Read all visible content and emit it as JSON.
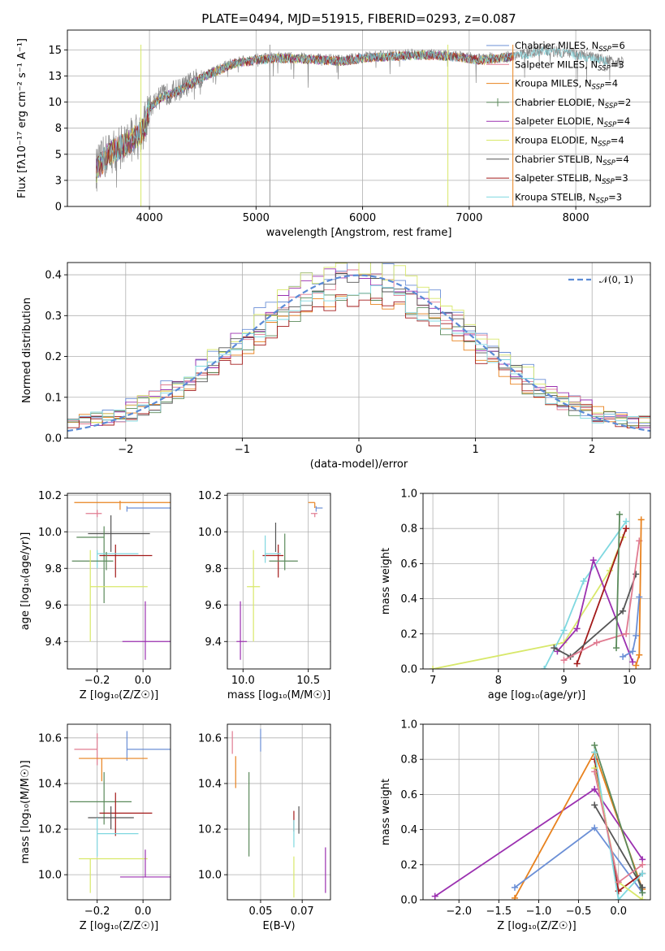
{
  "colors": {
    "Chabrier MILES": "#6b8fd6",
    "Salpeter MILES": "#e07b91",
    "Kroupa MILES": "#e8821e",
    "Chabrier ELODIE": "#5b8a5b",
    "Salpeter ELODIE": "#9b30b0",
    "Kroupa ELODIE": "#d8e86a",
    "Chabrier STELIB": "#555555",
    "Salpeter STELIB": "#a31a1a",
    "Kroupa STELIB": "#7fd8e0",
    "normal": "#5b8bd6",
    "grey_spectrum": "#8a8a8a"
  },
  "chart_data": [
    {
      "id": "spectrum",
      "type": "line",
      "title": "PLATE=0494, MJD=51915, FIBERID=0293, z=0.087",
      "xlabel": "wavelength [Angstrom, rest frame]",
      "ylabel": "Flux [fλ10⁻¹⁷ erg cm⁻² s⁻¹ A⁻¹]",
      "xlim": [
        3230,
        8700
      ],
      "ylim": [
        0,
        16.9
      ],
      "xticks": [
        4000,
        5000,
        6000,
        7000,
        8000
      ],
      "yticks": [
        0.0,
        2.5,
        5.0,
        7.5,
        10.0,
        12.5,
        15.0
      ],
      "continuum": {
        "x": [
          3500,
          3600,
          3800,
          3950,
          4000,
          4100,
          4300,
          4500,
          4800,
          5000,
          5200,
          5500,
          5800,
          6000,
          6300,
          6600,
          6900,
          7100,
          7400,
          7700,
          8000,
          8200,
          8400
        ],
        "y": [
          3.5,
          5.0,
          6.2,
          7.5,
          9.5,
          10.5,
          11.3,
          12.5,
          13.8,
          14.1,
          14.3,
          14.2,
          14.0,
          14.3,
          14.5,
          14.6,
          14.4,
          14.1,
          14.4,
          15.0,
          14.6,
          14.2,
          13.8
        ]
      },
      "legend_placement": "top-right",
      "series": [
        {
          "name": "Chabrier MILES, N_SSP=6",
          "label_main": "Chabrier MILES, N",
          "label_sub": "SSP",
          "label_tail": "=6"
        },
        {
          "name": "Salpeter MILES, N_SSP=3",
          "label_main": "Salpeter MILES, N",
          "label_sub": "SSP",
          "label_tail": "=3"
        },
        {
          "name": "Kroupa MILES, N_SSP=4",
          "label_main": "Kroupa MILES, N",
          "label_sub": "SSP",
          "label_tail": "=4"
        },
        {
          "name": "Chabrier ELODIE, N_SSP=2",
          "label_main": "Chabrier ELODIE, N",
          "label_sub": "SSP",
          "label_tail": "=2"
        },
        {
          "name": "Salpeter ELODIE, N_SSP=4",
          "label_main": "Salpeter ELODIE, N",
          "label_sub": "SSP",
          "label_tail": "=4"
        },
        {
          "name": "Kroupa ELODIE, N_SSP=4",
          "label_main": "Kroupa ELODIE, N",
          "label_sub": "SSP",
          "label_tail": "=4"
        },
        {
          "name": "Chabrier STELIB, N_SSP=4",
          "label_main": "Chabrier STELIB, N",
          "label_sub": "SSP",
          "label_tail": "=4"
        },
        {
          "name": "Salpeter STELIB, N_SSP=3",
          "label_main": "Salpeter STELIB, N",
          "label_sub": "SSP",
          "label_tail": "=3"
        },
        {
          "name": "Kroupa STELIB, N_SSP=3",
          "label_main": "Kroupa STELIB, N",
          "label_sub": "SSP",
          "label_tail": "=3"
        }
      ]
    },
    {
      "id": "residuals",
      "type": "histogram",
      "xlabel": "(data-model)/error",
      "ylabel": "Normed distribution",
      "xlim": [
        -2.5,
        2.5
      ],
      "ylim": [
        0,
        0.43
      ],
      "xticks": [
        -2,
        -1,
        0,
        1,
        2
      ],
      "yticks": [
        0.0,
        0.1,
        0.2,
        0.3,
        0.4
      ],
      "bin_width": 0.1,
      "normal_label": "𝒩(0, 1)",
      "legend_placement": "top-right"
    },
    {
      "id": "age_vs_Z",
      "type": "errorbar",
      "xlabel": "Z [log₁₀(Z/Z☉)]",
      "ylabel": "age  [log₁₀(age/yr)]",
      "xlim": [
        -0.33,
        0.12
      ],
      "ylim": [
        9.25,
        10.21
      ],
      "xticks": [
        -0.2,
        0.0
      ],
      "yticks": [
        9.4,
        9.6,
        9.8,
        10.0,
        10.2
      ],
      "points": [
        {
          "model": "Kroupa MILES",
          "x": -0.1,
          "xerr": [
            0.2,
            0.26
          ],
          "y": 10.16,
          "yerr": [
            0.04,
            0.01
          ]
        },
        {
          "model": "Chabrier MILES",
          "x": -0.07,
          "xerr": [
            0.0,
            0.2
          ],
          "y": 10.13,
          "yerr": [
            0.02,
            0.01
          ]
        },
        {
          "model": "Salpeter MILES",
          "x": -0.2,
          "xerr": [
            0.05,
            0.02
          ],
          "y": 10.1,
          "yerr": [
            0.02,
            0.02
          ]
        },
        {
          "model": "Chabrier STELIB",
          "x": -0.14,
          "xerr": [
            0.1,
            0.17
          ],
          "y": 9.99,
          "yerr": [
            0.1,
            0.1
          ]
        },
        {
          "model": "Chabrier ELODIE",
          "x": -0.17,
          "xerr": [
            0.12,
            0.0
          ],
          "y": 9.97,
          "yerr": [
            0.36,
            0.06
          ]
        },
        {
          "model": "Salpeter STELIB",
          "x": -0.12,
          "xerr": [
            0.07,
            0.16
          ],
          "y": 9.87,
          "yerr": [
            0.12,
            0.06
          ]
        },
        {
          "model": "Kroupa STELIB",
          "x": -0.2,
          "xerr": [
            0.0,
            0.18
          ],
          "y": 9.88,
          "yerr": [
            0.08,
            0.02
          ]
        },
        {
          "model": "Chabrier ELODIE",
          "x": -0.16,
          "xerr": [
            0.15,
            0.03
          ],
          "y": 9.84,
          "yerr": [
            0.05,
            0.05
          ]
        },
        {
          "model": "Kroupa ELODIE",
          "x": -0.23,
          "xerr": [
            0.0,
            0.25
          ],
          "y": 9.7,
          "yerr": [
            0.3,
            0.2
          ]
        },
        {
          "model": "Salpeter ELODIE",
          "x": 0.01,
          "xerr": [
            0.1,
            0.11
          ],
          "y": 9.4,
          "yerr": [
            0.1,
            0.22
          ]
        }
      ]
    },
    {
      "id": "age_vs_mass",
      "type": "errorbar",
      "xlabel": "mass [log₁₀(M/M☉)]",
      "ylabel": "",
      "xlim": [
        9.88,
        10.67
      ],
      "ylim": [
        9.25,
        10.21
      ],
      "xticks": [
        10.0,
        10.5
      ],
      "yticks": [
        9.4,
        9.6,
        9.8,
        10.0,
        10.2
      ],
      "points": [
        {
          "model": "Kroupa MILES",
          "x": 10.55,
          "xerr": [
            0.05,
            0.0
          ],
          "y": 10.16,
          "yerr": [
            0.03,
            0.0
          ]
        },
        {
          "model": "Chabrier MILES",
          "x": 10.56,
          "xerr": [
            0.0,
            0.05
          ],
          "y": 10.13,
          "yerr": [
            0.02,
            0.01
          ]
        },
        {
          "model": "Salpeter MILES",
          "x": 10.55,
          "xerr": [
            0.03,
            0.02
          ],
          "y": 10.1,
          "yerr": [
            0.02,
            0.0
          ]
        },
        {
          "model": "Chabrier STELIB",
          "x": 10.25,
          "xerr": [
            0.0,
            0.0
          ],
          "y": 9.99,
          "yerr": [
            0.1,
            0.06
          ]
        },
        {
          "model": "Salpeter STELIB",
          "x": 10.27,
          "xerr": [
            0.12,
            0.04
          ],
          "y": 9.87,
          "yerr": [
            0.12,
            0.06
          ]
        },
        {
          "model": "Kroupa STELIB",
          "x": 10.17,
          "xerr": [
            0.0,
            0.12
          ],
          "y": 9.88,
          "yerr": [
            0.05,
            0.1
          ]
        },
        {
          "model": "Chabrier ELODIE",
          "x": 10.32,
          "xerr": [
            0.12,
            0.1
          ],
          "y": 9.84,
          "yerr": [
            0.05,
            0.15
          ]
        },
        {
          "model": "Kroupa ELODIE",
          "x": 10.08,
          "xerr": [
            0.05,
            0.05
          ],
          "y": 9.7,
          "yerr": [
            0.3,
            0.2
          ]
        },
        {
          "model": "Salpeter ELODIE",
          "x": 9.98,
          "xerr": [
            0.03,
            0.05
          ],
          "y": 9.4,
          "yerr": [
            0.1,
            0.22
          ]
        }
      ]
    },
    {
      "id": "weight_vs_age",
      "type": "line",
      "xlabel": "age  [log₁₀(age/yr)]",
      "ylabel": "mass weight",
      "xlim": [
        6.85,
        10.32
      ],
      "ylim": [
        0,
        1
      ],
      "xticks": [
        7,
        8,
        9,
        10
      ],
      "yticks": [
        0.0,
        0.2,
        0.4,
        0.6,
        0.8,
        1.0
      ],
      "series": [
        {
          "model": "Kroupa ELODIE",
          "x": [
            7.0,
            9.0,
            9.7,
            9.9
          ],
          "y": [
            0.0,
            0.15,
            0.56,
            0.75
          ]
        },
        {
          "model": "Kroupa STELIB",
          "x": [
            8.7,
            9.0,
            9.3,
            9.95
          ],
          "y": [
            0.0,
            0.22,
            0.5,
            0.84
          ]
        },
        {
          "model": "Salpeter ELODIE",
          "x": [
            8.9,
            9.2,
            9.45,
            10.05
          ],
          "y": [
            0.1,
            0.23,
            0.62,
            0.04
          ]
        },
        {
          "model": "Salpeter STELIB",
          "x": [
            9.2,
            9.95
          ],
          "y": [
            0.03,
            0.8
          ]
        },
        {
          "model": "Chabrier STELIB",
          "x": [
            8.85,
            9.1,
            9.9,
            10.1
          ],
          "y": [
            0.12,
            0.07,
            0.33,
            0.54
          ]
        },
        {
          "model": "Salpeter MILES",
          "x": [
            9.0,
            9.5,
            9.95,
            10.15
          ],
          "y": [
            0.05,
            0.15,
            0.2,
            0.73
          ]
        },
        {
          "model": "Chabrier ELODIE",
          "x": [
            9.8,
            9.85
          ],
          "y": [
            0.12,
            0.88
          ]
        },
        {
          "model": "Kroupa MILES",
          "x": [
            10.1,
            10.15,
            10.18
          ],
          "y": [
            0.02,
            0.08,
            0.85
          ]
        },
        {
          "model": "Chabrier MILES",
          "x": [
            9.9,
            10.05,
            10.1,
            10.15
          ],
          "y": [
            0.07,
            0.1,
            0.19,
            0.41
          ]
        }
      ]
    },
    {
      "id": "mass_vs_Z",
      "type": "errorbar",
      "xlabel": "Z [log₁₀(Z/Z☉)]",
      "ylabel": "mass [log₁₀(M/M☉)]",
      "xlim": [
        -0.33,
        0.12
      ],
      "ylim": [
        9.89,
        10.66
      ],
      "xticks": [
        -0.2,
        0.0
      ],
      "yticks": [
        10.0,
        10.2,
        10.4,
        10.6
      ],
      "points": [
        {
          "model": "Salpeter MILES",
          "x": -0.2,
          "xerr": [
            0.1,
            0.0
          ],
          "y": 10.55,
          "yerr": [
            0.07,
            0.07
          ]
        },
        {
          "model": "Chabrier MILES",
          "x": -0.07,
          "xerr": [
            0.0,
            0.2
          ],
          "y": 10.55,
          "yerr": [
            0.05,
            0.08
          ]
        },
        {
          "model": "Kroupa MILES",
          "x": -0.18,
          "xerr": [
            0.1,
            0.2
          ],
          "y": 10.51,
          "yerr": [
            0.1,
            0.0
          ]
        },
        {
          "model": "Chabrier ELODIE",
          "x": -0.17,
          "xerr": [
            0.15,
            0.12
          ],
          "y": 10.32,
          "yerr": [
            0.1,
            0.13
          ]
        },
        {
          "model": "Salpeter STELIB",
          "x": -0.12,
          "xerr": [
            0.07,
            0.16
          ],
          "y": 10.27,
          "yerr": [
            0.1,
            0.09
          ]
        },
        {
          "model": "Chabrier STELIB",
          "x": -0.14,
          "xerr": [
            0.1,
            0.1
          ],
          "y": 10.25,
          "yerr": [
            0.05,
            0.05
          ]
        },
        {
          "model": "Kroupa STELIB",
          "x": -0.2,
          "xerr": [
            0.0,
            0.18
          ],
          "y": 10.18,
          "yerr": [
            0.1,
            0.07
          ]
        },
        {
          "model": "Kroupa ELODIE",
          "x": -0.23,
          "xerr": [
            0.05,
            0.25
          ],
          "y": 10.07,
          "yerr": [
            0.15,
            0.0
          ]
        },
        {
          "model": "Salpeter ELODIE",
          "x": 0.01,
          "xerr": [
            0.11,
            0.12
          ],
          "y": 9.99,
          "yerr": [
            0.0,
            0.12
          ]
        }
      ]
    },
    {
      "id": "mass_vs_ebv",
      "type": "errorbar",
      "xlabel": "E(B-V)",
      "ylabel": "",
      "xlim": [
        0.03,
        0.092
      ],
      "ylim": [
        9.89,
        10.66
      ],
      "xticks": [
        0.05,
        0.075
      ],
      "yticks": [
        10.0,
        10.2,
        10.4,
        10.6
      ],
      "points": [
        {
          "model": "Salpeter MILES",
          "x": 0.033,
          "xerr": [
            0,
            0
          ],
          "y": 10.58,
          "yerr": [
            0.05,
            0.05
          ]
        },
        {
          "model": "Chabrier MILES",
          "x": 0.05,
          "xerr": [
            0,
            0
          ],
          "y": 10.59,
          "yerr": [
            0.05,
            0.05
          ]
        },
        {
          "model": "Kroupa MILES",
          "x": 0.035,
          "xerr": [
            0,
            0
          ],
          "y": 10.45,
          "yerr": [
            0.07,
            0.07
          ]
        },
        {
          "model": "Chabrier ELODIE",
          "x": 0.043,
          "xerr": [
            0,
            0
          ],
          "y": 10.26,
          "yerr": [
            0.18,
            0.19
          ]
        },
        {
          "model": "Salpeter STELIB",
          "x": 0.07,
          "xerr": [
            0,
            0
          ],
          "y": 10.24,
          "yerr": [
            0.05,
            0.04
          ]
        },
        {
          "model": "Chabrier STELIB",
          "x": 0.073,
          "xerr": [
            0,
            0
          ],
          "y": 10.24,
          "yerr": [
            0.06,
            0.06
          ]
        },
        {
          "model": "Kroupa STELIB",
          "x": 0.07,
          "xerr": [
            0,
            0
          ],
          "y": 10.18,
          "yerr": [
            0.06,
            0.06
          ]
        },
        {
          "model": "Kroupa ELODIE",
          "x": 0.07,
          "xerr": [
            0,
            0
          ],
          "y": 10.02,
          "yerr": [
            0.12,
            0.06
          ]
        },
        {
          "model": "Salpeter ELODIE",
          "x": 0.089,
          "xerr": [
            0,
            0
          ],
          "y": 10.0,
          "yerr": [
            0.08,
            0.12
          ]
        }
      ]
    },
    {
      "id": "weight_vs_Z",
      "type": "line",
      "xlabel": "Z [log₁₀(Z/Z☉)]",
      "ylabel": "mass weight",
      "xlim": [
        -2.45,
        0.4
      ],
      "ylim": [
        0,
        1
      ],
      "xticks": [
        -2.0,
        -1.5,
        -1.0,
        -0.5,
        0.0
      ],
      "yticks": [
        0.0,
        0.2,
        0.4,
        0.6,
        0.8,
        1.0
      ],
      "series": [
        {
          "model": "Salpeter ELODIE",
          "x": [
            -2.3,
            -0.3,
            0.3
          ],
          "y": [
            0.02,
            0.63,
            0.23
          ]
        },
        {
          "model": "Kroupa MILES",
          "x": [
            -1.3,
            -0.3,
            0.3
          ],
          "y": [
            0.01,
            0.84,
            0.06
          ]
        },
        {
          "model": "Chabrier MILES",
          "x": [
            -1.3,
            -0.3,
            0.3
          ],
          "y": [
            0.07,
            0.41,
            0.04
          ]
        },
        {
          "model": "Chabrier ELODIE",
          "x": [
            -0.3,
            0.3
          ],
          "y": [
            0.88,
            0.04
          ]
        },
        {
          "model": "Chabrier STELIB",
          "x": [
            -0.3,
            0.3
          ],
          "y": [
            0.54,
            0.07
          ]
        },
        {
          "model": "Salpeter STELIB",
          "x": [
            -0.3,
            0.0,
            0.3
          ],
          "y": [
            0.8,
            0.05,
            0.15
          ]
        },
        {
          "model": "Kroupa STELIB",
          "x": [
            -0.3,
            0.0,
            0.3
          ],
          "y": [
            0.84,
            0.0,
            0.15
          ]
        },
        {
          "model": "Kroupa ELODIE",
          "x": [
            -0.3,
            0.0,
            0.3
          ],
          "y": [
            0.75,
            0.1,
            0.0
          ]
        },
        {
          "model": "Salpeter MILES",
          "x": [
            -0.3,
            0.0,
            0.3
          ],
          "y": [
            0.73,
            0.1,
            0.2
          ]
        }
      ]
    }
  ]
}
